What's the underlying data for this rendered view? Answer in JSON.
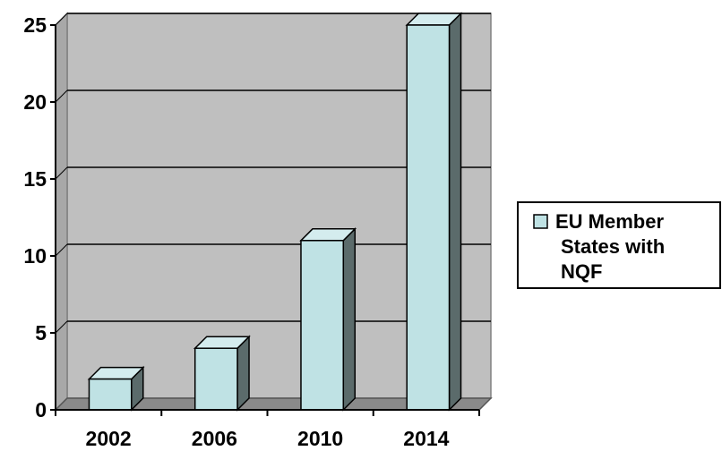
{
  "chart_data": {
    "type": "bar",
    "categories": [
      "2002",
      "2006",
      "2010",
      "2014"
    ],
    "series": [
      {
        "name": "EU Member States with NQF",
        "values": [
          2,
          4,
          11,
          25
        ]
      }
    ],
    "title": "",
    "xlabel": "",
    "ylabel": "",
    "ylim": [
      0,
      25
    ],
    "yticks": [
      0,
      5,
      10,
      15,
      20,
      25
    ],
    "grid": true,
    "legend_position": "right",
    "bar_style": "3d",
    "colors": {
      "bar_front": "#bfe2e4",
      "bar_side": "#5b6b6b",
      "bar_top": "#d4ecee",
      "plot_wall": "#bfbfbf",
      "plot_floor": "#8a8a8a"
    }
  },
  "legend": {
    "lines": [
      "EU Member",
      "States with",
      "NQF"
    ]
  }
}
